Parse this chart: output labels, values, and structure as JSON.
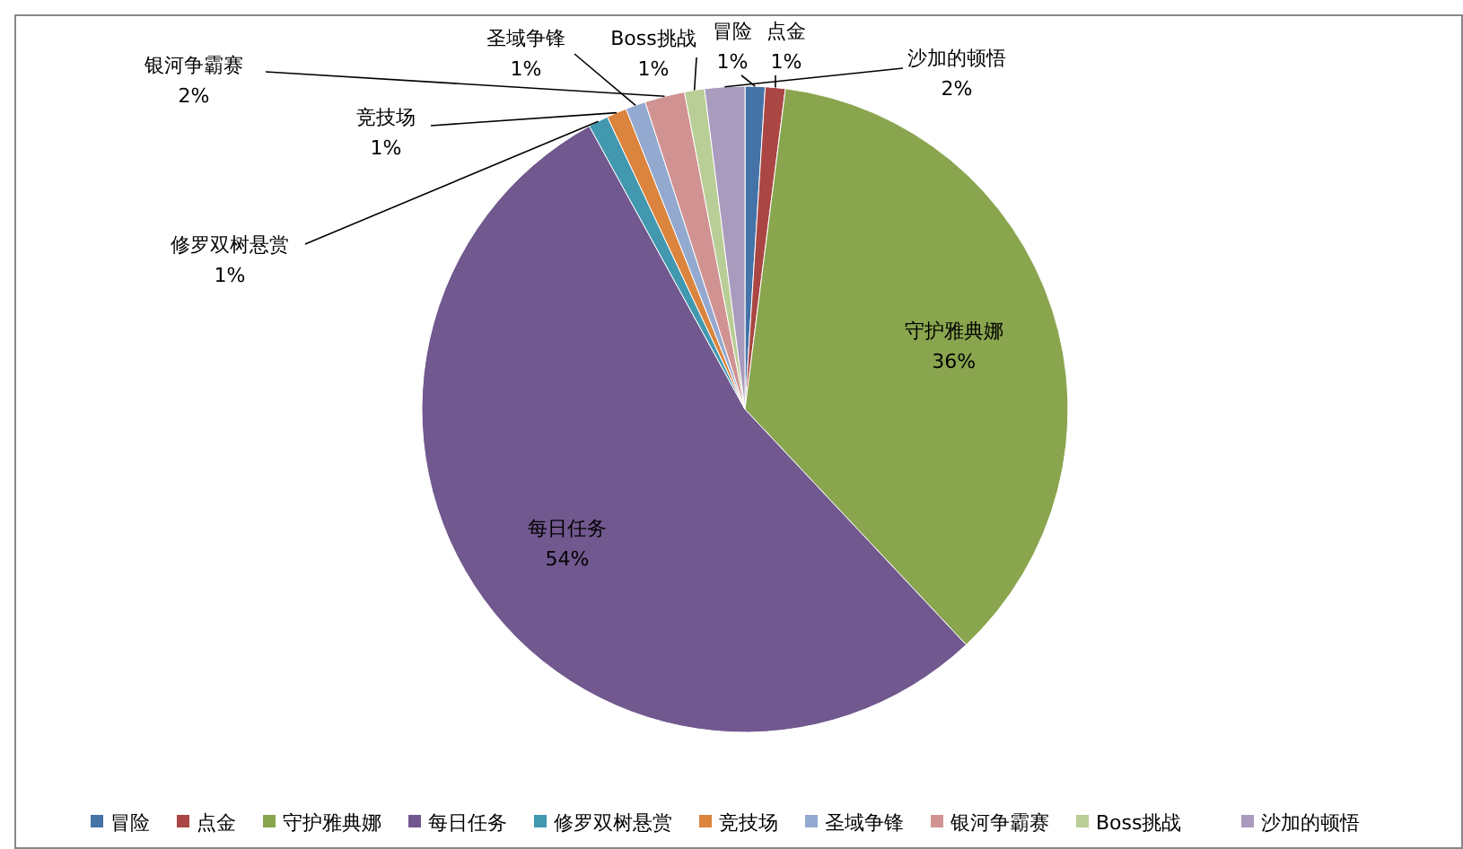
{
  "chart_data": {
    "type": "pie",
    "categories": [
      "冒险",
      "点金",
      "守护雅典娜",
      "每日任务",
      "修罗双树悬赏",
      "竞技场",
      "圣域争锋",
      "银河争霸赛",
      "Boss挑战",
      "沙加的顿悟"
    ],
    "values": [
      1,
      1,
      36,
      54,
      1,
      1,
      1,
      2,
      1,
      2
    ],
    "colors": [
      "#4572a7",
      "#aa4643",
      "#89a54e",
      "#71588f",
      "#4198af",
      "#db843d",
      "#93a9cf",
      "#d19392",
      "#b9cd96",
      "#a99bbd"
    ],
    "value_labels": [
      "1%",
      "1%",
      "36%",
      "54%",
      "1%",
      "1%",
      "1%",
      "2%",
      "1%",
      "2%"
    ],
    "legend": "bottom"
  }
}
